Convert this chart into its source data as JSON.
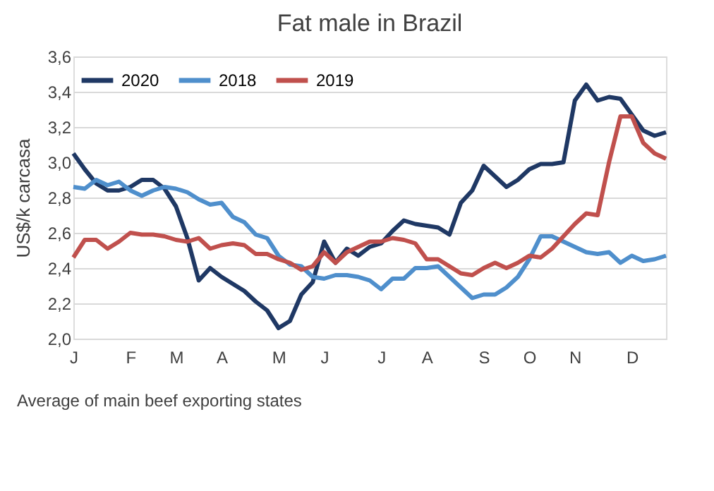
{
  "chart_data": {
    "type": "line",
    "title": "Fat male in Brazil",
    "ylabel": "US$/k carcasa",
    "categories": [
      "J",
      null,
      null,
      null,
      null,
      "F",
      null,
      null,
      null,
      "M",
      null,
      null,
      null,
      "A",
      null,
      null,
      null,
      null,
      "M",
      null,
      null,
      null,
      "J",
      null,
      null,
      null,
      null,
      "J",
      null,
      null,
      null,
      "A",
      null,
      null,
      null,
      null,
      "S",
      null,
      null,
      null,
      "O",
      null,
      null,
      null,
      "N",
      null,
      null,
      null,
      null,
      "D",
      null,
      null,
      null
    ],
    "series": [
      {
        "name": "2020",
        "color": "#1f3864",
        "values": [
          3.05,
          2.96,
          2.88,
          2.84,
          2.84,
          2.86,
          2.9,
          2.9,
          2.85,
          2.75,
          2.57,
          2.33,
          2.4,
          2.35,
          2.31,
          2.27,
          2.21,
          2.16,
          2.06,
          2.1,
          2.25,
          2.32,
          2.55,
          2.43,
          2.51,
          2.47,
          2.52,
          2.54,
          2.61,
          2.67,
          2.65,
          2.64,
          2.63,
          2.59,
          2.77,
          2.84,
          2.98,
          2.92,
          2.86,
          2.9,
          2.96,
          2.99,
          2.99,
          3.0,
          3.35,
          3.44,
          3.35,
          3.37,
          3.36,
          3.27,
          3.18,
          3.15,
          3.17
        ]
      },
      {
        "name": "2018",
        "color": "#4f8fcc",
        "values": [
          2.86,
          2.85,
          2.9,
          2.87,
          2.89,
          2.84,
          2.81,
          2.84,
          2.86,
          2.85,
          2.83,
          2.79,
          2.76,
          2.77,
          2.69,
          2.66,
          2.59,
          2.57,
          2.47,
          2.42,
          2.41,
          2.35,
          2.34,
          2.36,
          2.36,
          2.35,
          2.33,
          2.28,
          2.34,
          2.34,
          2.4,
          2.4,
          2.41,
          2.35,
          2.29,
          2.23,
          2.25,
          2.25,
          2.29,
          2.35,
          2.45,
          2.58,
          2.58,
          2.55,
          2.52,
          2.49,
          2.48,
          2.49,
          2.43,
          2.47,
          2.44,
          2.45,
          2.47
        ]
      },
      {
        "name": "2019",
        "color": "#c0504d",
        "values": [
          2.46,
          2.56,
          2.56,
          2.51,
          2.55,
          2.6,
          2.59,
          2.59,
          2.58,
          2.56,
          2.55,
          2.57,
          2.51,
          2.53,
          2.54,
          2.53,
          2.48,
          2.48,
          2.45,
          2.43,
          2.39,
          2.41,
          2.49,
          2.43,
          2.49,
          2.52,
          2.55,
          2.55,
          2.57,
          2.56,
          2.54,
          2.45,
          2.45,
          2.41,
          2.37,
          2.36,
          2.4,
          2.43,
          2.4,
          2.43,
          2.47,
          2.46,
          2.51,
          2.58,
          2.65,
          2.71,
          2.7,
          3.0,
          3.26,
          3.26,
          3.11,
          3.05,
          3.02
        ]
      }
    ],
    "ylim": [
      2.0,
      3.6
    ],
    "yticks": [
      {
        "value": 2.0,
        "label": "2,0"
      },
      {
        "value": 2.2,
        "label": "2,2"
      },
      {
        "value": 2.4,
        "label": "2,4"
      },
      {
        "value": 2.6,
        "label": "2,6"
      },
      {
        "value": 2.8,
        "label": "2,8"
      },
      {
        "value": 3.0,
        "label": "3,0"
      },
      {
        "value": 3.2,
        "label": "3,2"
      },
      {
        "value": 3.4,
        "label": "3,4"
      },
      {
        "value": 3.6,
        "label": "3,6"
      }
    ],
    "grid": "y",
    "legend": "top left",
    "marker": "none",
    "line_style": "solid",
    "annotations": [
      "Average of main beef exporting states"
    ]
  }
}
